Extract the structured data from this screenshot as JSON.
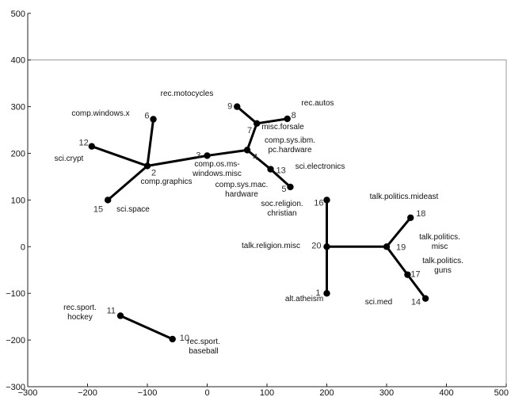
{
  "chart_data": {
    "type": "scatter",
    "title": "",
    "xlabel": "",
    "ylabel": "",
    "xlim": [
      -300,
      500
    ],
    "ylim": [
      -300,
      500
    ],
    "xticks": [
      -300,
      -200,
      -100,
      0,
      100,
      200,
      300,
      400,
      500
    ],
    "yticks": [
      -300,
      -200,
      -100,
      0,
      100,
      200,
      300,
      400,
      500
    ],
    "frame": {
      "x0": -300,
      "x1": 500,
      "y0": -300,
      "y1": 400
    },
    "colors": {
      "axis": "#222222",
      "edge": "#000000",
      "node": "#000000",
      "frame": "#999999"
    },
    "nodes": [
      {
        "id": "1",
        "x": 200,
        "y": -100,
        "label": "alt.atheism"
      },
      {
        "id": "2",
        "x": -100,
        "y": 173,
        "label": "comp.graphics"
      },
      {
        "id": "3",
        "x": 0,
        "y": 195,
        "label": "comp.os.ms-windows.misc"
      },
      {
        "id": "4",
        "x": 67,
        "y": 207,
        "label": "comp.sys.ibm.pc.hardware"
      },
      {
        "id": "5",
        "x": 139,
        "y": 128,
        "label": "comp.sys.mac.hardware"
      },
      {
        "id": "6",
        "x": -90,
        "y": 273,
        "label": "comp.windows.x"
      },
      {
        "id": "7",
        "x": 83,
        "y": 264,
        "label": "misc.forsale"
      },
      {
        "id": "8",
        "x": 134,
        "y": 274,
        "label": "rec.autos"
      },
      {
        "id": "9",
        "x": 50,
        "y": 300,
        "label": "rec.motocycles"
      },
      {
        "id": "10",
        "x": -58,
        "y": -198,
        "label": "rec.sport.baseball"
      },
      {
        "id": "11",
        "x": -145,
        "y": -148,
        "label": "rec.sport.hockey"
      },
      {
        "id": "12",
        "x": -193,
        "y": 215,
        "label": "sci.crypt"
      },
      {
        "id": "13",
        "x": 106,
        "y": 166,
        "label": "sci.electronics"
      },
      {
        "id": "14",
        "x": 365,
        "y": -111,
        "label": "sci.med"
      },
      {
        "id": "15",
        "x": -166,
        "y": 100,
        "label": "sci.space"
      },
      {
        "id": "16",
        "x": 200,
        "y": 100,
        "label": "soc.religion.christian"
      },
      {
        "id": "17",
        "x": 335,
        "y": -60,
        "label": "talk.politics.guns"
      },
      {
        "id": "18",
        "x": 340,
        "y": 62,
        "label": "talk.politics.mideast"
      },
      {
        "id": "19",
        "x": 300,
        "y": 0,
        "label": "talk.politics.misc"
      },
      {
        "id": "20",
        "x": 200,
        "y": 0,
        "label": "talk.religion.misc"
      }
    ],
    "edges": [
      [
        "2",
        "12"
      ],
      [
        "2",
        "6"
      ],
      [
        "2",
        "15"
      ],
      [
        "2",
        "3"
      ],
      [
        "3",
        "4"
      ],
      [
        "4",
        "7"
      ],
      [
        "4",
        "13"
      ],
      [
        "13",
        "5"
      ],
      [
        "7",
        "9"
      ],
      [
        "7",
        "8"
      ],
      [
        "11",
        "10"
      ],
      [
        "20",
        "16"
      ],
      [
        "20",
        "1"
      ],
      [
        "20",
        "19"
      ],
      [
        "19",
        "18"
      ],
      [
        "19",
        "17"
      ],
      [
        "17",
        "14"
      ]
    ],
    "text_labels": [
      {
        "node": "1",
        "lines": [
          "alt.atheism"
        ]
      },
      {
        "node": "2",
        "lines": [
          "comp.graphics"
        ]
      },
      {
        "node": "3",
        "lines": [
          "comp.os.ms-",
          "windows.misc"
        ]
      },
      {
        "node": "4",
        "lines": [
          "comp.sys.ibm.",
          "pc.hardware"
        ]
      },
      {
        "node": "5",
        "lines": [
          "comp.sys.mac.",
          "hardware"
        ]
      },
      {
        "node": "6",
        "lines": [
          "comp.windows.x"
        ]
      },
      {
        "node": "7",
        "lines": [
          "misc.forsale"
        ]
      },
      {
        "node": "8",
        "lines": [
          "rec.autos"
        ]
      },
      {
        "node": "9",
        "lines": [
          "rec.motocycles"
        ]
      },
      {
        "node": "10",
        "lines": [
          "rec.sport.",
          "baseball"
        ]
      },
      {
        "node": "11",
        "lines": [
          "rec.sport.",
          "hockey"
        ]
      },
      {
        "node": "12",
        "lines": [
          "sci.crypt"
        ]
      },
      {
        "node": "13",
        "lines": [
          "sci.electronics"
        ]
      },
      {
        "node": "14",
        "lines": [
          "sci.med"
        ]
      },
      {
        "node": "15",
        "lines": [
          "sci.space"
        ]
      },
      {
        "node": "16",
        "lines": [
          "soc.religion.",
          "christian"
        ]
      },
      {
        "node": "17",
        "lines": [
          "talk.politics.",
          "guns"
        ]
      },
      {
        "node": "18",
        "lines": [
          "talk.politics.mideast"
        ]
      },
      {
        "node": "19",
        "lines": [
          "talk.politics.",
          "misc"
        ]
      },
      {
        "node": "20",
        "lines": [
          "talk.religion.misc"
        ]
      }
    ]
  }
}
